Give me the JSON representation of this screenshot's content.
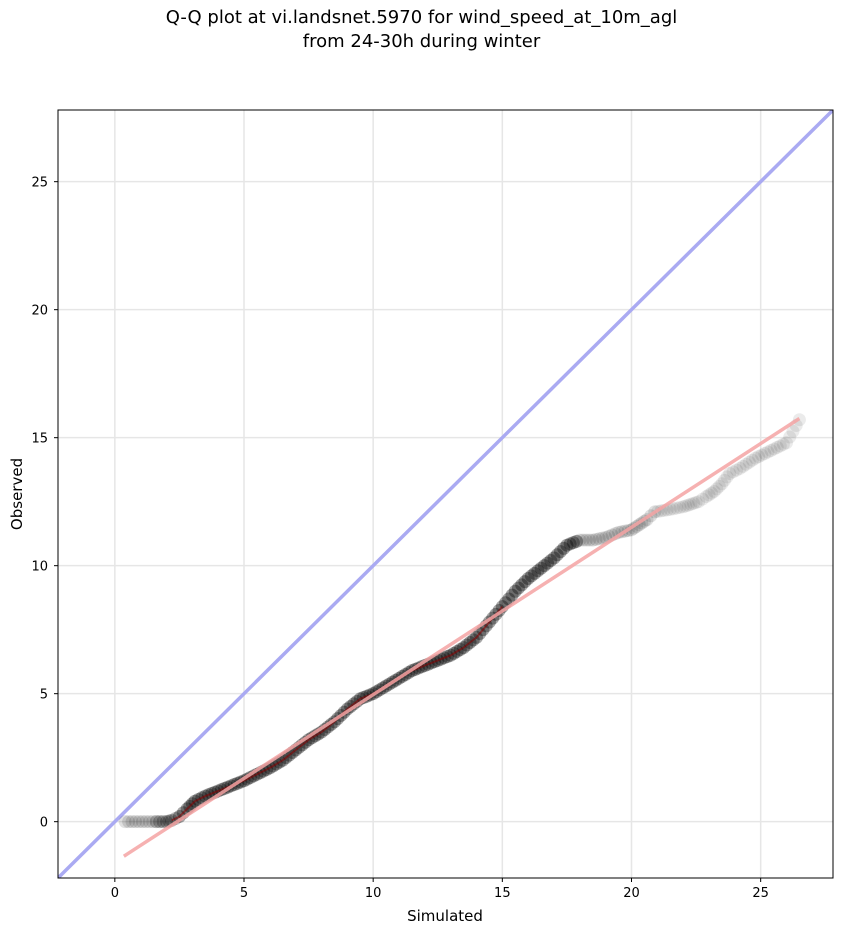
{
  "chart_data": {
    "type": "scatter",
    "title_line1": "Q-Q plot at vi.landsnet.5970 for wind_speed_at_10m_agl",
    "title_line2": "from 24-30h during winter",
    "xlabel": "Simulated",
    "ylabel": "Observed",
    "xlim": [
      -2.2,
      27.8
    ],
    "ylim": [
      -2.2,
      27.8
    ],
    "xticks": [
      0,
      5,
      10,
      15,
      20,
      25
    ],
    "yticks": [
      0,
      5,
      10,
      15,
      20,
      25
    ],
    "grid": true,
    "colors": {
      "points": "#000000",
      "identity_line": "#aaaaf2",
      "fit_line": "#f5a3a3",
      "dense_segment": "#8b0000"
    },
    "identity_line": {
      "x": [
        -2.2,
        27.8
      ],
      "y": [
        -2.2,
        27.8
      ]
    },
    "fit_line": {
      "x": [
        0.35,
        26.5
      ],
      "y": [
        -1.35,
        15.75
      ]
    },
    "quantiles": {
      "x": [
        0.4,
        0.8,
        1.2,
        1.6,
        2.0,
        2.2,
        2.5,
        2.8,
        3.1,
        3.5,
        4.0,
        4.5,
        5.0,
        5.5,
        6.0,
        6.5,
        7.0,
        7.5,
        8.0,
        8.5,
        9.0,
        9.5,
        10.0,
        10.5,
        11.0,
        11.5,
        12.0,
        12.5,
        13.0,
        13.5,
        14.0,
        14.5,
        15.0,
        15.5,
        16.0,
        16.5,
        17.0,
        17.5,
        18.0,
        18.5,
        19.0,
        19.5,
        20.0,
        20.3,
        20.6,
        20.9,
        21.5,
        22.0,
        22.3,
        22.6,
        22.9,
        23.2,
        23.5,
        23.8,
        24.2,
        24.8,
        26.0,
        26.5
      ],
      "y": [
        0.0,
        0.0,
        0.0,
        0.0,
        0.0,
        0.05,
        0.2,
        0.5,
        0.8,
        1.0,
        1.2,
        1.4,
        1.6,
        1.85,
        2.1,
        2.4,
        2.8,
        3.2,
        3.5,
        3.9,
        4.4,
        4.8,
        5.0,
        5.3,
        5.6,
        5.9,
        6.1,
        6.3,
        6.5,
        6.8,
        7.2,
        7.8,
        8.4,
        9.0,
        9.5,
        9.9,
        10.3,
        10.8,
        11.0,
        11.0,
        11.1,
        11.3,
        11.4,
        11.6,
        11.8,
        12.1,
        12.2,
        12.3,
        12.4,
        12.5,
        12.7,
        12.9,
        13.2,
        13.6,
        13.8,
        14.2,
        14.8,
        15.7
      ]
    }
  }
}
